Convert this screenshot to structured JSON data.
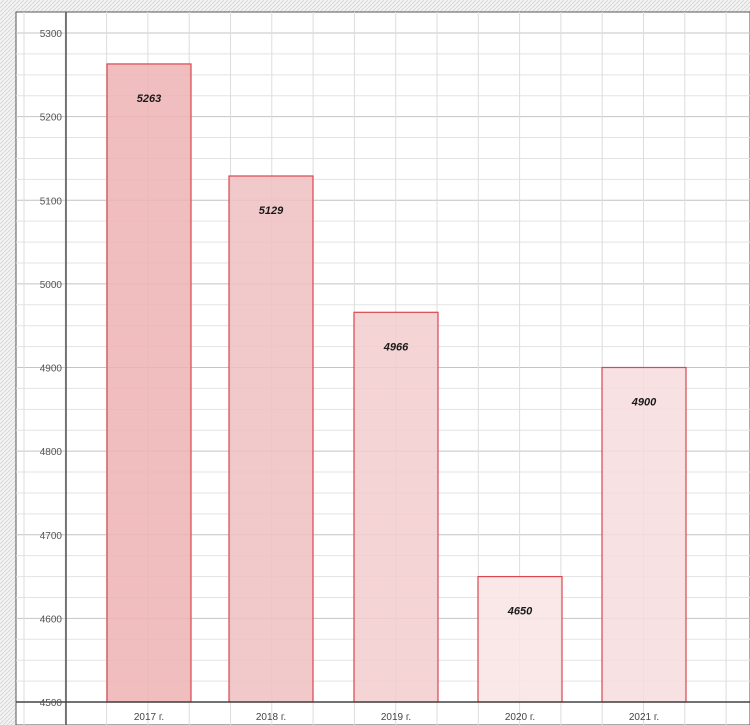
{
  "chart_data": {
    "type": "bar",
    "categories": [
      "2017 г.",
      "2018 г.",
      "2019 г.",
      "2020 г.",
      "2021 г."
    ],
    "values": [
      5263,
      5129,
      4966,
      4650,
      4900
    ],
    "data_labels": [
      "5263",
      "5129",
      "4966",
      "4650",
      "4900"
    ],
    "y_ticks": [
      4500,
      4600,
      4700,
      4800,
      4900,
      5000,
      5100,
      5200,
      5300
    ],
    "ylim": [
      4500,
      5300
    ],
    "grid": true,
    "legend": "none",
    "colors": {
      "bar_fills": [
        "#eeb3b5",
        "#f0c0c2",
        "#f3cdcf",
        "#f9e4e5",
        "#f7dcdd"
      ],
      "bar_stroke": "#d9474f",
      "grid": "#d6d6d6",
      "axis": "#444444",
      "pattern": "#c8c8c8"
    }
  }
}
